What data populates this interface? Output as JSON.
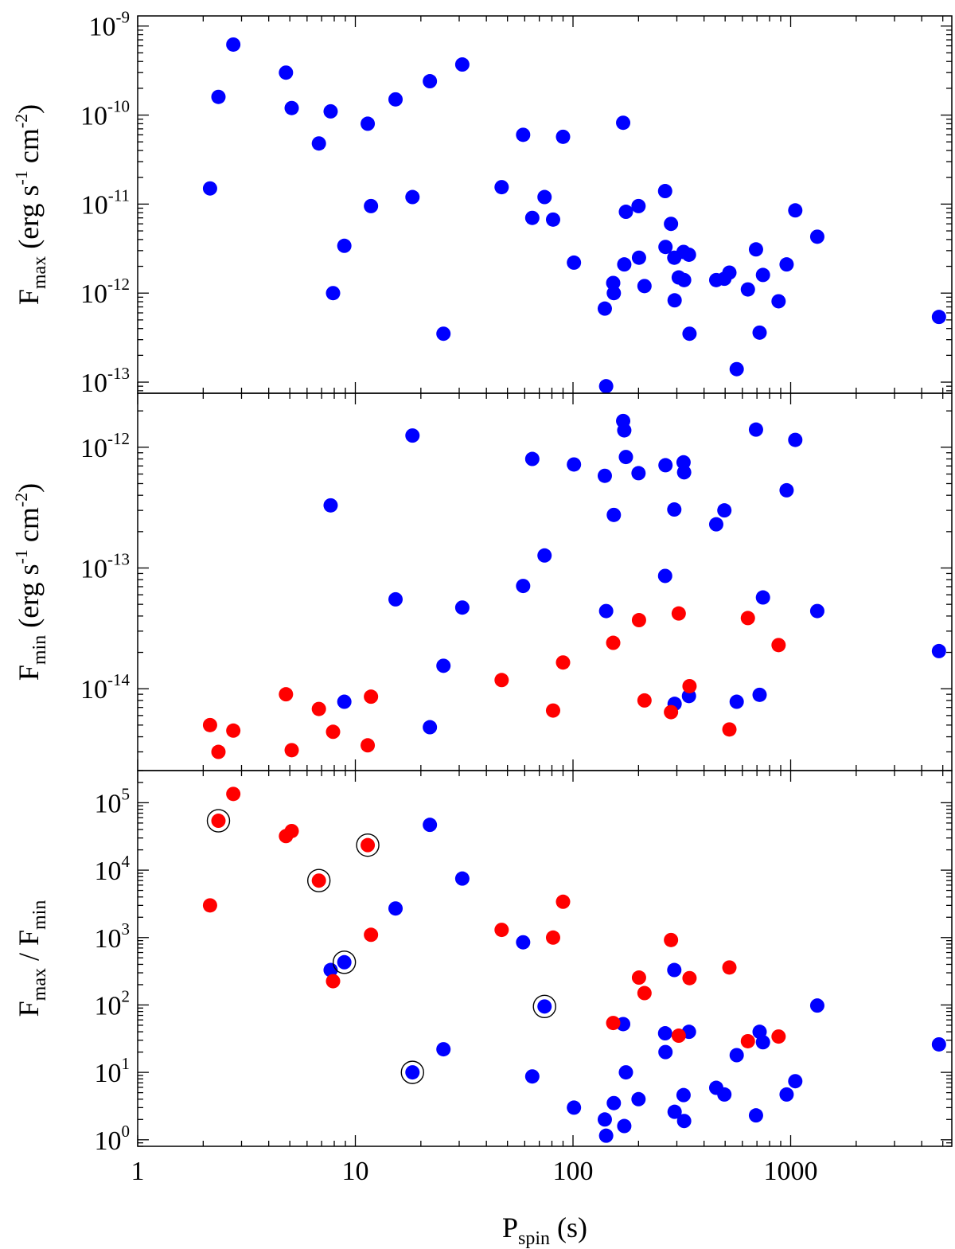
{
  "chart_data": [
    {
      "type": "scatter",
      "xscale": "log",
      "yscale": "log",
      "xlim": [
        1,
        5500
      ],
      "ylim": [
        7.5e-14,
        1.3e-09
      ],
      "xlabel": "",
      "ylabel": {
        "base": "F",
        "sub": "max",
        "rest": [
          [
            "(erg s",
            ""
          ],
          [
            "-1",
            "sup"
          ],
          [
            " cm",
            ""
          ],
          [
            "-2",
            "sup"
          ],
          [
            ")",
            ""
          ]
        ]
      },
      "y_tick_labels": [
        {
          "value": 1e-09,
          "base": "10",
          "exp": "-9"
        },
        {
          "value": 1e-10,
          "base": "10",
          "exp": "-10"
        },
        {
          "value": 1e-11,
          "base": "10",
          "exp": "-11"
        },
        {
          "value": 1e-12,
          "base": "10",
          "exp": "-12"
        },
        {
          "value": 1e-13,
          "base": "10",
          "exp": "-13"
        }
      ],
      "series": [
        {
          "color": "#0000ff",
          "points": [
            [
              2.15,
              1.5e-11
            ],
            [
              2.35,
              1.6e-10
            ],
            [
              2.75,
              6.2e-10
            ],
            [
              4.8,
              3e-10
            ],
            [
              5.1,
              1.2e-10
            ],
            [
              6.8,
              4.8e-11
            ],
            [
              7.7,
              1.1e-10
            ],
            [
              7.9,
              1e-12
            ],
            [
              8.9,
              3.4e-12
            ],
            [
              11.4,
              8e-11
            ],
            [
              11.8,
              9.5e-12
            ],
            [
              15.3,
              1.5e-10
            ],
            [
              18.3,
              1.2e-11
            ],
            [
              22.0,
              2.4e-10
            ],
            [
              25.4,
              3.5e-13
            ],
            [
              31.0,
              3.7e-10
            ],
            [
              47.0,
              1.55e-11
            ],
            [
              59.0,
              6e-11
            ],
            [
              65.0,
              7e-12
            ],
            [
              74.0,
              1.2e-11
            ],
            [
              81.0,
              6.7e-12
            ],
            [
              90.0,
              5.7e-11
            ],
            [
              101.0,
              2.2e-12
            ],
            [
              140.0,
              6.7e-13
            ],
            [
              142.0,
              9e-14
            ],
            [
              153.0,
              1.3e-12
            ],
            [
              154.0,
              1e-12
            ],
            [
              170.0,
              8.2e-11
            ],
            [
              172.0,
              2.1e-12
            ],
            [
              175.0,
              8.2e-12
            ],
            [
              200.0,
              9.5e-12
            ],
            [
              201.0,
              2.5e-12
            ],
            [
              213.0,
              1.2e-12
            ],
            [
              265.0,
              1.4e-11
            ],
            [
              266.0,
              3.3e-12
            ],
            [
              282.0,
              6e-12
            ],
            [
              292.0,
              2.5e-12
            ],
            [
              293.0,
              8.3e-13
            ],
            [
              306.0,
              1.5e-12
            ],
            [
              322.0,
              2.9e-12
            ],
            [
              324.0,
              1.4e-12
            ],
            [
              341.0,
              2.7e-12
            ],
            [
              343.0,
              3.5e-13
            ],
            [
              455.0,
              1.4e-12
            ],
            [
              496.0,
              1.45e-12
            ],
            [
              523.0,
              1.7e-12
            ],
            [
              565.0,
              1.4e-13
            ],
            [
              636.0,
              1.1e-12
            ],
            [
              693.0,
              3.1e-12
            ],
            [
              720.0,
              3.6e-13
            ],
            [
              746.0,
              1.6e-12
            ],
            [
              880.0,
              8.1e-13
            ],
            [
              958.0,
              2.1e-12
            ],
            [
              1050.0,
              8.5e-12
            ],
            [
              1325.0,
              4.3e-12
            ],
            [
              4800.0,
              5.4e-13
            ]
          ]
        }
      ]
    },
    {
      "type": "scatter",
      "xscale": "log",
      "yscale": "log",
      "xlim": [
        1,
        5500
      ],
      "ylim": [
        2.1e-15,
        2.8e-12
      ],
      "xlabel": "",
      "ylabel": {
        "base": "F",
        "sub": "min",
        "rest": [
          [
            "(erg s",
            ""
          ],
          [
            "-1",
            "sup"
          ],
          [
            " cm",
            ""
          ],
          [
            "-2",
            "sup"
          ],
          [
            ")",
            ""
          ]
        ]
      },
      "y_tick_labels": [
        {
          "value": 1e-12,
          "base": "10",
          "exp": "-12"
        },
        {
          "value": 1e-13,
          "base": "10",
          "exp": "-13"
        },
        {
          "value": 1e-14,
          "base": "10",
          "exp": "-14"
        }
      ],
      "series": [
        {
          "color": "#0000ff",
          "points": [
            [
              7.7,
              3.3e-13
            ],
            [
              8.9,
              7.8e-15
            ],
            [
              15.3,
              5.5e-14
            ],
            [
              18.3,
              1.25e-12
            ],
            [
              22.0,
              4.8e-15
            ],
            [
              25.4,
              1.55e-14
            ],
            [
              31.0,
              4.7e-14
            ],
            [
              59.0,
              7.1e-14
            ],
            [
              65.0,
              8e-13
            ],
            [
              74.0,
              1.27e-13
            ],
            [
              101.0,
              7.2e-13
            ],
            [
              140.0,
              5.8e-13
            ],
            [
              142.0,
              4.4e-14
            ],
            [
              154.0,
              2.75e-13
            ],
            [
              170.0,
              1.65e-12
            ],
            [
              172.0,
              1.38e-12
            ],
            [
              175.0,
              8.3e-13
            ],
            [
              200.0,
              6.1e-13
            ],
            [
              265.0,
              8.6e-14
            ],
            [
              266.0,
              7.1e-13
            ],
            [
              292.0,
              3.05e-13
            ],
            [
              293.0,
              7.5e-15
            ],
            [
              322.0,
              7.5e-13
            ],
            [
              324.0,
              6.2e-13
            ],
            [
              341.0,
              8.7e-15
            ],
            [
              455.0,
              2.3e-13
            ],
            [
              496.0,
              3e-13
            ],
            [
              565.0,
              7.8e-15
            ],
            [
              693.0,
              1.4e-12
            ],
            [
              720.0,
              8.9e-15
            ],
            [
              746.0,
              5.7e-14
            ],
            [
              958.0,
              4.4e-13
            ],
            [
              1050.0,
              1.15e-12
            ],
            [
              1325.0,
              4.4e-14
            ],
            [
              4800.0,
              2.05e-14
            ]
          ]
        },
        {
          "color": "#ff0000",
          "points": [
            [
              2.15,
              5e-15
            ],
            [
              2.35,
              3e-15
            ],
            [
              2.75,
              4.5e-15
            ],
            [
              4.8,
              9e-15
            ],
            [
              5.1,
              3.1e-15
            ],
            [
              6.8,
              6.8e-15
            ],
            [
              7.9,
              4.4e-15
            ],
            [
              11.4,
              3.4e-15
            ],
            [
              11.8,
              8.6e-15
            ],
            [
              47.0,
              1.18e-14
            ],
            [
              81.0,
              6.6e-15
            ],
            [
              90.0,
              1.65e-14
            ],
            [
              153.0,
              2.4e-14
            ],
            [
              201.0,
              3.7e-14
            ],
            [
              213.0,
              8e-15
            ],
            [
              282.0,
              6.4e-15
            ],
            [
              306.0,
              4.2e-14
            ],
            [
              343.0,
              1.05e-14
            ],
            [
              523.0,
              4.6e-15
            ],
            [
              636.0,
              3.85e-14
            ],
            [
              880.0,
              2.3e-14
            ]
          ]
        }
      ]
    },
    {
      "type": "scatter",
      "xscale": "log",
      "yscale": "log",
      "xlim": [
        1,
        5500
      ],
      "ylim": [
        0.8,
        300000.0
      ],
      "xlabel": {
        "base": "P",
        "sub": "spin",
        "rest": [
          [
            " (s)",
            ""
          ]
        ]
      },
      "ylabel": {
        "base": "F",
        "sub": "max",
        "mid": " / F",
        "sub2": "min"
      },
      "x_tick_labels": [
        {
          "value": 1,
          "text": "1"
        },
        {
          "value": 10,
          "text": "10"
        },
        {
          "value": 100,
          "text": "100"
        },
        {
          "value": 1000,
          "text": "1000"
        }
      ],
      "y_tick_labels": [
        {
          "value": 100000.0,
          "base": "10",
          "exp": "5"
        },
        {
          "value": 10000.0,
          "base": "10",
          "exp": "4"
        },
        {
          "value": 1000.0,
          "base": "10",
          "exp": "3"
        },
        {
          "value": 100.0,
          "base": "10",
          "exp": "2"
        },
        {
          "value": 10.0,
          "base": "10",
          "exp": "1"
        },
        {
          "value": 1,
          "base": "10",
          "exp": "0"
        }
      ],
      "series": [
        {
          "color": "#0000ff",
          "points": [
            [
              7.7,
              330
            ],
            [
              8.9,
              430
            ],
            [
              15.3,
              2700
            ],
            [
              18.3,
              10
            ],
            [
              22.0,
              47000
            ],
            [
              25.4,
              22
            ],
            [
              31.0,
              7500
            ],
            [
              59.0,
              850
            ],
            [
              65.0,
              8.7
            ],
            [
              74.0,
              95
            ],
            [
              101.0,
              3.0
            ],
            [
              140.0,
              2.0
            ],
            [
              142.0,
              1.15
            ],
            [
              154.0,
              3.5
            ],
            [
              170.0,
              52
            ],
            [
              172.0,
              1.6
            ],
            [
              175.0,
              10
            ],
            [
              200.0,
              4.0
            ],
            [
              265.0,
              38
            ],
            [
              266.0,
              20
            ],
            [
              292.0,
              330
            ],
            [
              293.0,
              2.6
            ],
            [
              322.0,
              4.6
            ],
            [
              324.0,
              1.9
            ],
            [
              341.0,
              40
            ],
            [
              455.0,
              5.9
            ],
            [
              496.0,
              4.7
            ],
            [
              565.0,
              18
            ],
            [
              693.0,
              2.3
            ],
            [
              720.0,
              40
            ],
            [
              746.0,
              28
            ],
            [
              958.0,
              4.7
            ],
            [
              1050.0,
              7.4
            ],
            [
              1325.0,
              98
            ],
            [
              4800.0,
              26
            ]
          ]
        },
        {
          "color": "#ff0000",
          "points": [
            [
              2.15,
              3000
            ],
            [
              2.35,
              54000
            ],
            [
              2.75,
              135000
            ],
            [
              4.8,
              32000
            ],
            [
              5.1,
              38000
            ],
            [
              6.8,
              7000
            ],
            [
              7.9,
              225
            ],
            [
              11.4,
              23500
            ],
            [
              11.8,
              1100
            ],
            [
              47.0,
              1300
            ],
            [
              81.0,
              1000
            ],
            [
              90.0,
              3400
            ],
            [
              153.0,
              54
            ],
            [
              201.0,
              255
            ],
            [
              213.0,
              150
            ],
            [
              282.0,
              920
            ],
            [
              306.0,
              35
            ],
            [
              343.0,
              250
            ],
            [
              523.0,
              360
            ],
            [
              636.0,
              29
            ],
            [
              880.0,
              34
            ]
          ]
        }
      ],
      "circled_points": [
        [
          2.35,
          54000
        ],
        [
          6.8,
          7000
        ],
        [
          11.4,
          23500
        ],
        [
          8.9,
          430
        ],
        [
          74.0,
          95
        ],
        [
          18.3,
          10
        ]
      ]
    }
  ]
}
